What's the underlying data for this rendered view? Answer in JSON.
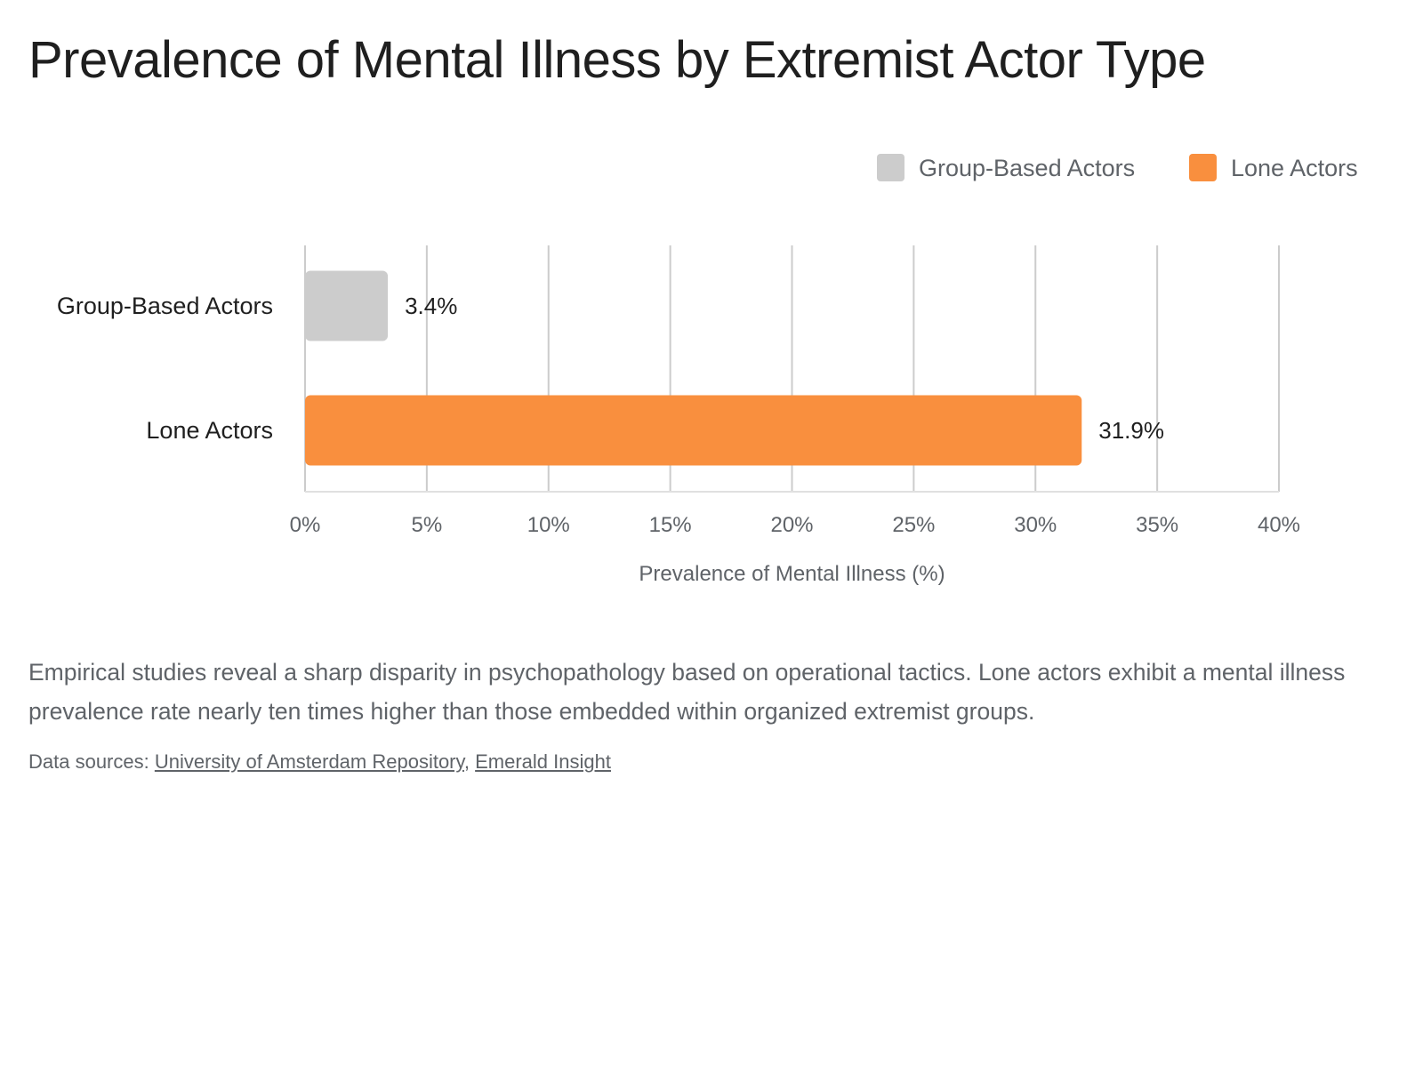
{
  "title": "Prevalence of Mental Illness by Extremist Actor Type",
  "description": "Empirical studies reveal a sharp disparity in psychopathology based on operational tactics. Lone actors exhibit a mental illness prevalence rate nearly ten times higher than those embedded within organized extremist groups.",
  "sources": {
    "prefix": "Data sources: ",
    "separator": ", ",
    "links": [
      "University of Amsterdam Repository",
      "Emerald Insight"
    ]
  },
  "colors": {
    "group_based": "#cccccc",
    "lone": "#f98f3e",
    "grid": "#cccccc",
    "axis_line": "#e0e0e0"
  },
  "chart_data": {
    "type": "bar",
    "orientation": "horizontal",
    "title": "Prevalence of Mental Illness by Extremist Actor Type",
    "categories": [
      "Group-Based Actors",
      "Lone Actors"
    ],
    "values": [
      3.4,
      31.9
    ],
    "value_labels": [
      "3.4%",
      "31.9%"
    ],
    "xlabel": "Prevalence of Mental Illness (%)",
    "ylabel": "",
    "xlim": [
      0,
      40
    ],
    "x_ticks": [
      0,
      5,
      10,
      15,
      20,
      25,
      30,
      35,
      40
    ],
    "x_tick_labels": [
      "0%",
      "5%",
      "10%",
      "15%",
      "20%",
      "25%",
      "30%",
      "35%",
      "40%"
    ],
    "legend": [
      "Group-Based Actors",
      "Lone Actors"
    ],
    "legend_position": "top-right",
    "grid": true
  }
}
